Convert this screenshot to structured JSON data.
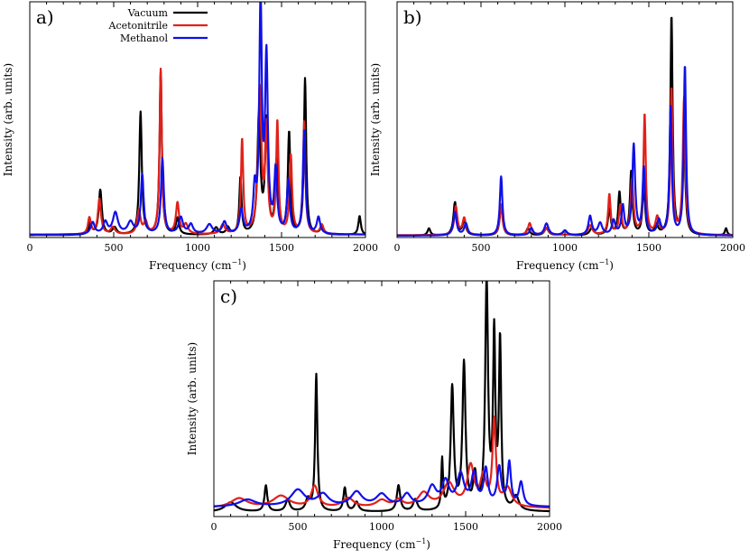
{
  "figure": {
    "series_colors": {
      "Vacuum": "#000000",
      "Acetonitrile": "#e0211a",
      "Methanol": "#1010e8"
    },
    "legend": [
      {
        "name": "Vacuum",
        "color": "#000000"
      },
      {
        "name": "Acetonitrile",
        "color": "#e0211a"
      },
      {
        "name": "Methanol",
        "color": "#1010e8"
      }
    ]
  },
  "chart_data": [
    {
      "type": "line",
      "panel": "a)",
      "xlabel": "Frequency (cm",
      "xlabel_sup": "−1",
      "xlabel_close": ")",
      "ylabel": "Intensity (arb. units)",
      "xlim": [
        0,
        2000
      ],
      "ylim": [
        0,
        1
      ],
      "xticks": [
        "0",
        "500",
        "1000",
        "1500",
        "2000"
      ],
      "legend_position": "top-left",
      "series": [
        {
          "name": "Vacuum",
          "baseline": 0.01,
          "peaks": [
            [
              360,
              0.05,
              10
            ],
            [
              420,
              0.19,
              11
            ],
            [
              505,
              0.03,
              15
            ],
            [
              660,
              0.52,
              9
            ],
            [
              780,
              0.69,
              8
            ],
            [
              880,
              0.07,
              11
            ],
            [
              1110,
              0.03,
              15
            ],
            [
              1180,
              0.03,
              12
            ],
            [
              1255,
              0.24,
              8
            ],
            [
              1365,
              0.5,
              11
            ],
            [
              1410,
              0.47,
              10
            ],
            [
              1470,
              0.3,
              9
            ],
            [
              1545,
              0.43,
              9
            ],
            [
              1640,
              0.66,
              8
            ],
            [
              1740,
              0.03,
              12
            ],
            [
              1965,
              0.08,
              9
            ]
          ]
        },
        {
          "name": "Acetonitrile",
          "baseline": 0.012,
          "peaks": [
            [
              355,
              0.07,
              10
            ],
            [
              415,
              0.15,
              11
            ],
            [
              495,
              0.03,
              15
            ],
            [
              650,
              0.1,
              12
            ],
            [
              690,
              0.05,
              12
            ],
            [
              780,
              0.7,
              8
            ],
            [
              880,
              0.13,
              11
            ],
            [
              930,
              0.04,
              15
            ],
            [
              1150,
              0.04,
              15
            ],
            [
              1265,
              0.4,
              8
            ],
            [
              1370,
              0.61,
              12
            ],
            [
              1410,
              0.43,
              9
            ],
            [
              1475,
              0.47,
              8
            ],
            [
              1555,
              0.33,
              9
            ],
            [
              1635,
              0.48,
              8
            ],
            [
              1740,
              0.04,
              12
            ]
          ]
        },
        {
          "name": "Methanol",
          "baseline": 0.012,
          "peaks": [
            [
              375,
              0.05,
              14
            ],
            [
              450,
              0.05,
              15
            ],
            [
              510,
              0.09,
              18
            ],
            [
              600,
              0.05,
              20
            ],
            [
              670,
              0.25,
              10
            ],
            [
              790,
              0.32,
              10
            ],
            [
              900,
              0.07,
              15
            ],
            [
              960,
              0.04,
              15
            ],
            [
              1070,
              0.04,
              20
            ],
            [
              1160,
              0.05,
              15
            ],
            [
              1260,
              0.1,
              12
            ],
            [
              1340,
              0.17,
              10
            ],
            [
              1375,
              0.97,
              9
            ],
            [
              1410,
              0.73,
              10
            ],
            [
              1465,
              0.26,
              10
            ],
            [
              1540,
              0.22,
              10
            ],
            [
              1635,
              0.44,
              9
            ],
            [
              1720,
              0.07,
              12
            ]
          ]
        }
      ]
    },
    {
      "type": "line",
      "panel": "b)",
      "xlabel": "Frequency (cm",
      "xlabel_sup": "−1",
      "xlabel_close": ")",
      "ylabel": "Intensity (arb. units)",
      "xlim": [
        0,
        2000
      ],
      "ylim": [
        0,
        1
      ],
      "xticks": [
        "0",
        "500",
        "1000",
        "1500",
        "2000"
      ],
      "series": [
        {
          "name": "Vacuum",
          "baseline": 0.008,
          "peaks": [
            [
              190,
              0.03,
              10
            ],
            [
              345,
              0.14,
              11
            ],
            [
              400,
              0.06,
              12
            ],
            [
              620,
              0.13,
              10
            ],
            [
              780,
              0.03,
              12
            ],
            [
              890,
              0.03,
              15
            ],
            [
              1000,
              0.02,
              15
            ],
            [
              1160,
              0.03,
              15
            ],
            [
              1265,
              0.11,
              10
            ],
            [
              1325,
              0.18,
              9
            ],
            [
              1395,
              0.27,
              9
            ],
            [
              1470,
              0.21,
              9
            ],
            [
              1545,
              0.04,
              12
            ],
            [
              1635,
              0.93,
              8
            ],
            [
              1710,
              0.42,
              9
            ],
            [
              1960,
              0.03,
              8
            ]
          ]
        },
        {
          "name": "Acetonitrile",
          "baseline": 0.01,
          "peaks": [
            [
              350,
              0.12,
              11
            ],
            [
              400,
              0.07,
              12
            ],
            [
              620,
              0.13,
              10
            ],
            [
              790,
              0.05,
              12
            ],
            [
              890,
              0.03,
              15
            ],
            [
              1150,
              0.04,
              15
            ],
            [
              1265,
              0.17,
              9
            ],
            [
              1330,
              0.12,
              10
            ],
            [
              1400,
              0.23,
              10
            ],
            [
              1475,
              0.51,
              8
            ],
            [
              1550,
              0.07,
              12
            ],
            [
              1635,
              0.62,
              8
            ],
            [
              1710,
              0.58,
              9
            ]
          ]
        },
        {
          "name": "Methanol",
          "baseline": 0.008,
          "peaks": [
            [
              345,
              0.1,
              11
            ],
            [
              410,
              0.05,
              12
            ],
            [
              620,
              0.25,
              9
            ],
            [
              800,
              0.03,
              12
            ],
            [
              890,
              0.05,
              15
            ],
            [
              1000,
              0.02,
              15
            ],
            [
              1150,
              0.08,
              12
            ],
            [
              1210,
              0.05,
              15
            ],
            [
              1290,
              0.06,
              12
            ],
            [
              1345,
              0.12,
              10
            ],
            [
              1410,
              0.38,
              10
            ],
            [
              1470,
              0.28,
              9
            ],
            [
              1560,
              0.06,
              12
            ],
            [
              1630,
              0.54,
              8
            ],
            [
              1715,
              0.72,
              8
            ]
          ]
        }
      ]
    },
    {
      "type": "line",
      "panel": "c)",
      "xlabel": "Frequency (cm",
      "xlabel_sup": "−1",
      "xlabel_close": ")",
      "ylabel": "Intensity (arb. units)",
      "xlim": [
        0,
        2000
      ],
      "ylim": [
        0,
        1
      ],
      "xticks": [
        "0",
        "500",
        "1000",
        "1500",
        "2000"
      ],
      "series": [
        {
          "name": "Vacuum",
          "baseline": 0.02,
          "peaks": [
            [
              100,
              0.04,
              40
            ],
            [
              310,
              0.11,
              10
            ],
            [
              440,
              0.05,
              15
            ],
            [
              560,
              0.05,
              15
            ],
            [
              610,
              0.58,
              8
            ],
            [
              780,
              0.1,
              10
            ],
            [
              850,
              0.04,
              15
            ],
            [
              1100,
              0.11,
              12
            ],
            [
              1200,
              0.05,
              15
            ],
            [
              1360,
              0.21,
              6
            ],
            [
              1420,
              0.52,
              11
            ],
            [
              1490,
              0.62,
              11
            ],
            [
              1555,
              0.14,
              12
            ],
            [
              1625,
              0.97,
              10
            ],
            [
              1670,
              0.73,
              8
            ],
            [
              1705,
              0.71,
              8
            ],
            [
              1800,
              0.06,
              20
            ]
          ]
        },
        {
          "name": "Acetonitrile",
          "baseline": 0.035,
          "peaks": [
            [
              150,
              0.04,
              60
            ],
            [
              400,
              0.05,
              60
            ],
            [
              600,
              0.09,
              25
            ],
            [
              800,
              0.04,
              40
            ],
            [
              1000,
              0.03,
              40
            ],
            [
              1100,
              0.03,
              30
            ],
            [
              1250,
              0.06,
              40
            ],
            [
              1400,
              0.1,
              40
            ],
            [
              1530,
              0.17,
              25
            ],
            [
              1605,
              0.12,
              20
            ],
            [
              1670,
              0.36,
              12
            ],
            [
              1750,
              0.08,
              30
            ]
          ]
        },
        {
          "name": "Methanol",
          "baseline": 0.04,
          "peaks": [
            [
              200,
              0.03,
              60
            ],
            [
              500,
              0.07,
              50
            ],
            [
              650,
              0.05,
              40
            ],
            [
              850,
              0.06,
              40
            ],
            [
              1000,
              0.05,
              40
            ],
            [
              1150,
              0.05,
              30
            ],
            [
              1300,
              0.08,
              30
            ],
            [
              1380,
              0.1,
              25
            ],
            [
              1470,
              0.13,
              25
            ],
            [
              1550,
              0.13,
              20
            ],
            [
              1620,
              0.15,
              15
            ],
            [
              1700,
              0.16,
              15
            ],
            [
              1760,
              0.18,
              12
            ],
            [
              1830,
              0.1,
              15
            ]
          ]
        }
      ]
    }
  ]
}
